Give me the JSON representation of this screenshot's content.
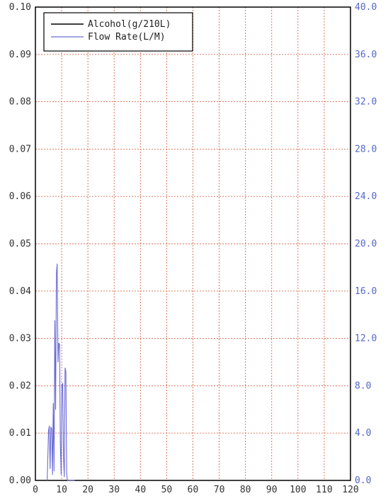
{
  "chart_data": {
    "type": "line",
    "title": "",
    "xlabel": "",
    "ylabel": "",
    "xlim": [
      0,
      120
    ],
    "ylim_left": [
      0,
      0.1
    ],
    "ylim_right": [
      0,
      40
    ],
    "x_ticks": [
      "0",
      "10",
      "20",
      "30",
      "40",
      "50",
      "60",
      "70",
      "80",
      "90",
      "100",
      "110",
      "120"
    ],
    "y_left_ticks": [
      "0.00",
      "0.01",
      "0.02",
      "0.03",
      "0.04",
      "0.05",
      "0.06",
      "0.07",
      "0.08",
      "0.09",
      "0.10"
    ],
    "y_right_ticks": [
      "0.0",
      "4.0",
      "8.0",
      "12.0",
      "16.0",
      "20.0",
      "24.0",
      "28.0",
      "32.0",
      "36.0",
      "40.0"
    ],
    "grid": true,
    "legend_position": "top-left",
    "series": [
      {
        "name": "Alcohol(g/210L)",
        "axis": "left",
        "color": "#000000",
        "x": [],
        "y": []
      },
      {
        "name": "Flow Rate(L/M)",
        "axis": "right",
        "color": "#6a6ad6",
        "x": [
          4.5,
          5.0,
          5.3,
          5.6,
          5.9,
          6.2,
          6.5,
          6.8,
          7.1,
          7.4,
          7.7,
          8.0,
          8.3,
          8.6,
          8.9,
          9.2,
          9.5,
          9.8,
          10.1,
          10.4,
          10.7,
          11.0,
          11.3,
          11.6,
          11.9,
          12.2,
          12.5,
          12.8,
          13.1,
          13.4,
          13.7,
          14.0,
          14.3,
          14.6,
          15.0
        ],
        "y": [
          0.0,
          4.2,
          4.6,
          1.0,
          4.5,
          4.4,
          0.5,
          6.5,
          0.8,
          13.5,
          6.0,
          17.5,
          18.3,
          10.0,
          11.6,
          11.5,
          3.0,
          0.5,
          8.0,
          8.2,
          2.0,
          0.3,
          9.5,
          9.2,
          0.6,
          0.0,
          0.0,
          0.0,
          0.0,
          0.0,
          0.0,
          0.0,
          0.0,
          0.0,
          0.0
        ]
      }
    ]
  }
}
